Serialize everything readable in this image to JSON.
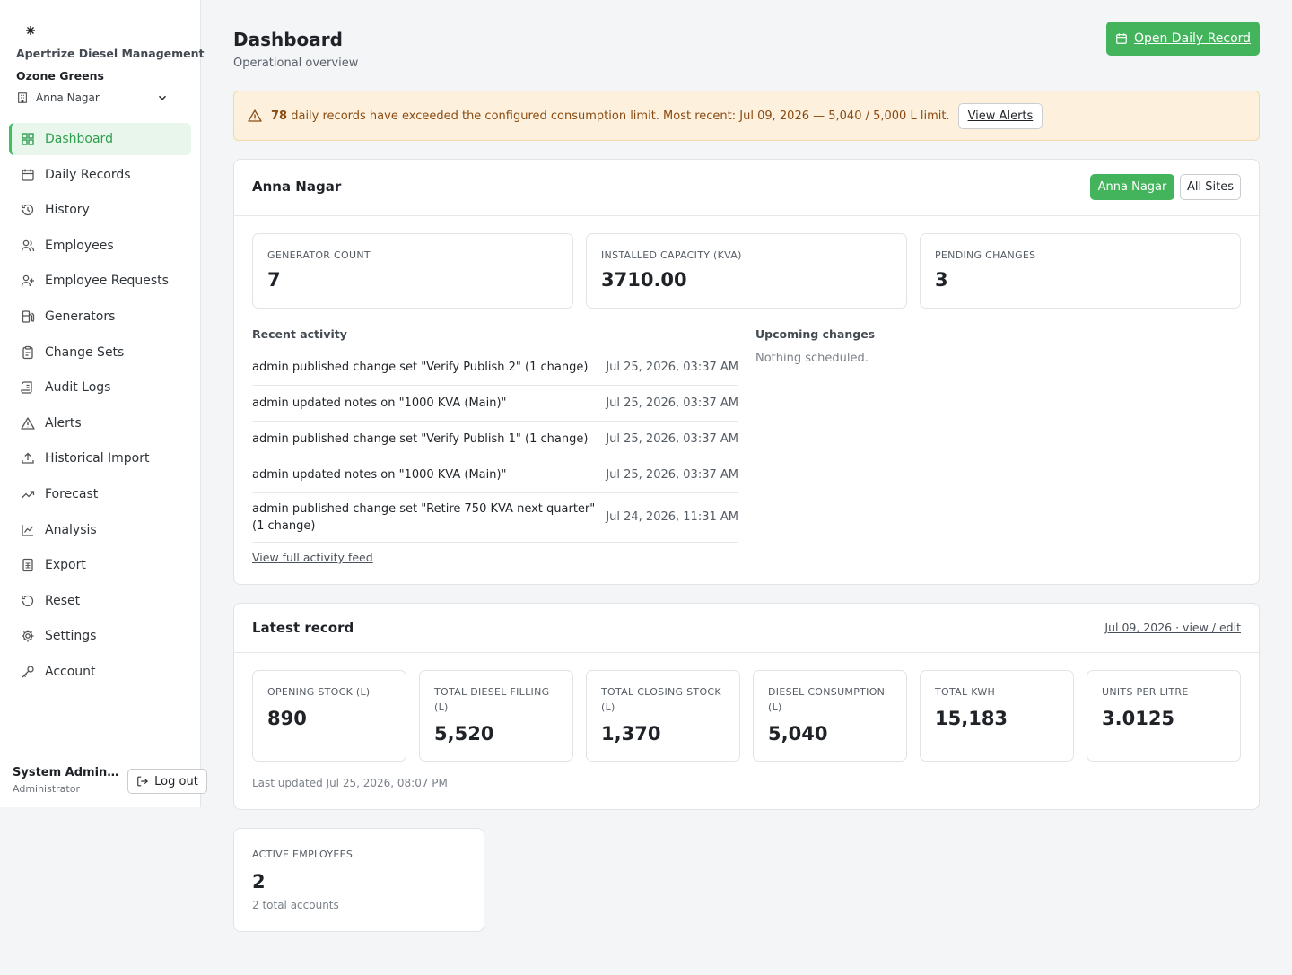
{
  "app": {
    "brand_name": "Apertrize Diesel Management",
    "org_name": "Ozone Greens",
    "site_selector": "Anna Nagar"
  },
  "nav": [
    {
      "label": "Dashboard",
      "icon": "dashboard-icon",
      "active": true
    },
    {
      "label": "Daily Records",
      "icon": "calendar-icon"
    },
    {
      "label": "History",
      "icon": "history-icon"
    },
    {
      "label": "Employees",
      "icon": "users-icon"
    },
    {
      "label": "Employee Requests",
      "icon": "user-plus-icon"
    },
    {
      "label": "Generators",
      "icon": "fuel-icon"
    },
    {
      "label": "Change Sets",
      "icon": "clipboard-icon"
    },
    {
      "label": "Audit Logs",
      "icon": "scroll-icon"
    },
    {
      "label": "Alerts",
      "icon": "warning-icon"
    },
    {
      "label": "Historical Import",
      "icon": "upload-icon"
    },
    {
      "label": "Forecast",
      "icon": "trending-up-icon"
    },
    {
      "label": "Analysis",
      "icon": "line-chart-icon"
    },
    {
      "label": "Export",
      "icon": "spreadsheet-icon"
    },
    {
      "label": "Reset",
      "icon": "reset-icon"
    },
    {
      "label": "Settings",
      "icon": "gear-icon"
    },
    {
      "label": "Account",
      "icon": "key-icon"
    }
  ],
  "user": {
    "name": "System Administrator",
    "role": "Administrator",
    "logout_label": "Log out"
  },
  "header": {
    "title": "Dashboard",
    "subtitle": "Operational overview",
    "primary_action": "Open Daily Record"
  },
  "alert": {
    "count": "78",
    "message": " daily records have exceeded the configured consumption limit. Most recent: Jul 09, 2026 — 5,040 / 5,000 L limit.",
    "button": "View Alerts"
  },
  "site_card": {
    "title": "Anna Nagar",
    "toggle_site": "Anna Nagar",
    "toggle_all": "All Sites",
    "stats": [
      {
        "label": "GENERATOR COUNT",
        "value": "7"
      },
      {
        "label": "INSTALLED CAPACITY (KVA)",
        "value": "3710.00"
      },
      {
        "label": "PENDING CHANGES",
        "value": "3"
      }
    ],
    "recent_activity_label": "Recent activity",
    "activity": [
      {
        "text": "admin published change set \"Verify Publish 2\" (1 change)",
        "date": "Jul 25, 2026, 03:37 AM"
      },
      {
        "text": "admin updated notes on \"1000 KVA (Main)\"",
        "date": "Jul 25, 2026, 03:37 AM"
      },
      {
        "text": "admin published change set \"Verify Publish 1\" (1 change)",
        "date": "Jul 25, 2026, 03:37 AM"
      },
      {
        "text": "admin updated notes on \"1000 KVA (Main)\"",
        "date": "Jul 25, 2026, 03:37 AM"
      },
      {
        "text": "admin published change set \"Retire 750 KVA next quarter\" (1 change)",
        "date": "Jul 24, 2026, 11:31 AM"
      }
    ],
    "activity_link": "View full activity feed",
    "upcoming_label": "Upcoming changes",
    "upcoming_empty": "Nothing scheduled."
  },
  "latest_record": {
    "title": "Latest record",
    "link": "Jul 09, 2026 · view / edit",
    "stats": [
      {
        "label": "OPENING STOCK (L)",
        "value": "890"
      },
      {
        "label": "TOTAL DIESEL FILLING (L)",
        "value": "5,520"
      },
      {
        "label": "TOTAL CLOSING STOCK (L)",
        "value": "1,370"
      },
      {
        "label": "DIESEL CONSUMPTION (L)",
        "value": "5,040"
      },
      {
        "label": "TOTAL KWH",
        "value": "15,183"
      },
      {
        "label": "UNITS PER LITRE",
        "value": "3.0125"
      }
    ],
    "updated": "Last updated Jul 25, 2026, 08:07 PM"
  },
  "employees_card": {
    "label": "ACTIVE EMPLOYEES",
    "value": "2",
    "sub": "2 total accounts"
  },
  "colors": {
    "accent": "#43b45c",
    "alert_bg": "#fdf1dd",
    "alert_text": "#8a4b12"
  }
}
